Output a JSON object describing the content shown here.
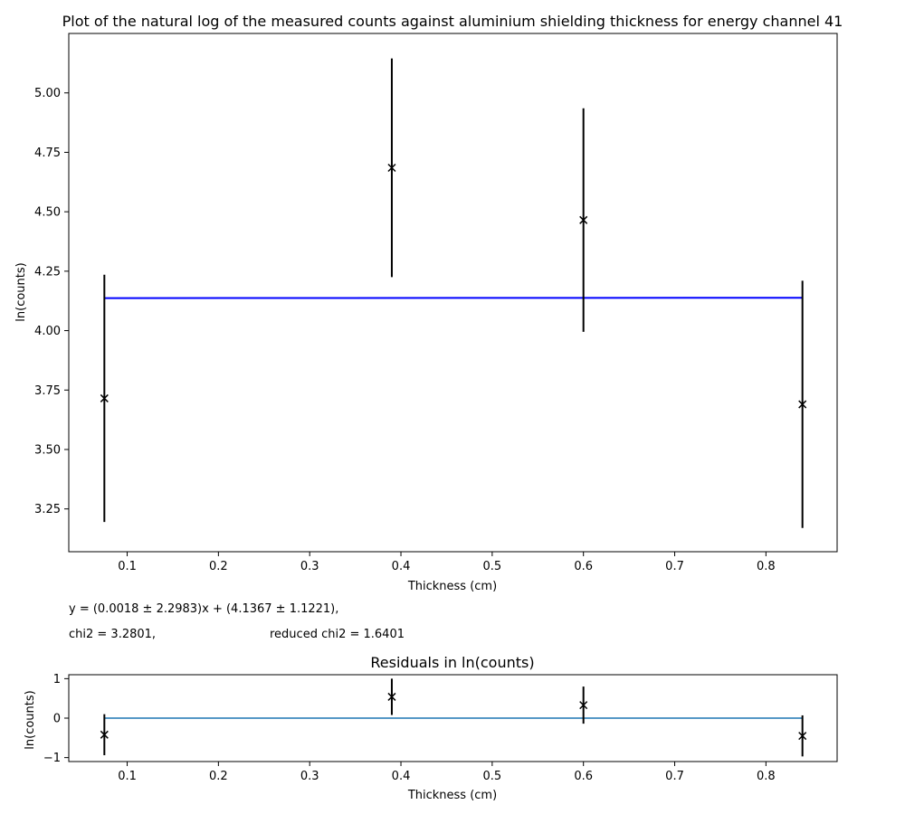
{
  "chart_data": [
    {
      "type": "scatter",
      "title": "Plot of the natural log of the measured counts against aluminium shielding thickness for energy channel 41",
      "xlabel": "Thickness (cm)",
      "ylabel": "ln(counts)",
      "xlim": [
        0.036,
        0.878
      ],
      "ylim": [
        3.07,
        5.25
      ],
      "xticks": [
        0.1,
        0.2,
        0.3,
        0.4,
        0.5,
        0.6,
        0.7,
        0.8
      ],
      "yticks": [
        3.25,
        3.5,
        3.75,
        4.0,
        4.25,
        4.5,
        4.75,
        5.0
      ],
      "grid": false,
      "marker": "x",
      "color": "#000000",
      "points": [
        {
          "x": 0.075,
          "y": 3.715,
          "err": 0.52
        },
        {
          "x": 0.39,
          "y": 4.685,
          "err": 0.46
        },
        {
          "x": 0.6,
          "y": 4.465,
          "err": 0.47
        },
        {
          "x": 0.84,
          "y": 3.69,
          "err": 0.52
        }
      ],
      "fit_line": {
        "color": "#0000ff",
        "x": [
          0.075,
          0.84
        ],
        "y": [
          4.1368,
          4.1382
        ]
      }
    },
    {
      "type": "scatter",
      "title": "Residuals in ln(counts)",
      "xlabel": "Thickness (cm)",
      "ylabel": "ln(counts)",
      "xlim": [
        0.036,
        0.878
      ],
      "ylim": [
        -1.1,
        1.1
      ],
      "xticks": [
        0.1,
        0.2,
        0.3,
        0.4,
        0.5,
        0.6,
        0.7,
        0.8
      ],
      "yticks": [
        -1,
        0,
        1
      ],
      "ytick_labels": [
        "−1",
        "0",
        "1"
      ],
      "grid": false,
      "marker": "x",
      "color": "#000000",
      "points": [
        {
          "x": 0.075,
          "y": -0.42,
          "err": 0.52
        },
        {
          "x": 0.39,
          "y": 0.54,
          "err": 0.46
        },
        {
          "x": 0.6,
          "y": 0.33,
          "err": 0.47
        },
        {
          "x": 0.84,
          "y": -0.45,
          "err": 0.52
        }
      ],
      "zero_line": {
        "color": "#1f77b4",
        "x": [
          0.075,
          0.84
        ],
        "y": [
          0,
          0
        ]
      }
    }
  ],
  "fit_info": {
    "equation": "y = (0.0018 ± 2.2983)x + (4.1367 ± 1.1221),",
    "chi2": "chi2 = 3.2801,",
    "reduced_chi2": "reduced chi2 = 1.6401"
  }
}
